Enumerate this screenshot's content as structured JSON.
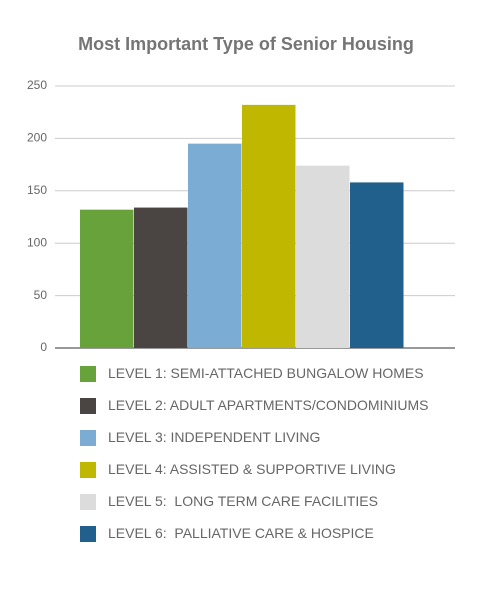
{
  "chart_data": {
    "type": "bar",
    "title": "Most Important Type of Senior Housing",
    "categories": [
      null
    ],
    "series": [
      {
        "name": "LEVEL 1: SEMI-ATTACHED BUNGALOW HOMES",
        "color": "#67a23a",
        "values": [
          132
        ]
      },
      {
        "name": "LEVEL 2: ADULT APARTMENTS/CONDOMINIUMS",
        "color": "#4a4543",
        "values": [
          134
        ]
      },
      {
        "name": "LEVEL 3: INDEPENDENT LIVING",
        "color": "#7bacd4",
        "values": [
          195
        ]
      },
      {
        "name": "LEVEL 4: ASSISTED & SUPPORTIVE LIVING",
        "color": "#c0b800",
        "values": [
          232
        ]
      },
      {
        "name": "LEVEL 5:  LONG TERM CARE FACILITIES",
        "color": "#dcdcdc",
        "values": [
          174
        ]
      },
      {
        "name": "LEVEL 6:  PALLIATIVE CARE & HOSPICE",
        "color": "#215f8d",
        "values": [
          158
        ]
      }
    ],
    "ylim": [
      0,
      250
    ],
    "yticks": [
      0,
      50,
      100,
      150,
      200,
      250
    ],
    "grid": true,
    "legend": "bottom"
  }
}
